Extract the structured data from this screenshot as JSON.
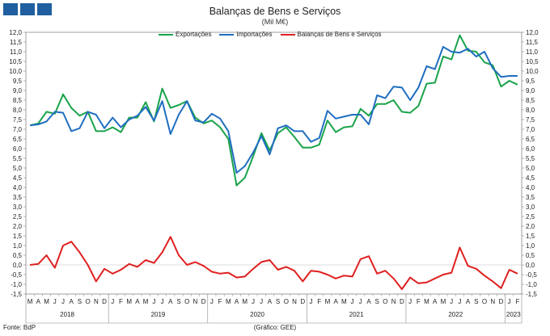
{
  "chart_data": {
    "type": "line",
    "title": "Balanças de Bens e Serviços",
    "subtitle": "(Mil M€)",
    "y_ticks": [
      "12,0",
      "11,5",
      "11,0",
      "10,5",
      "10,0",
      "9,5",
      "9,0",
      "8,5",
      "8,0",
      "7,5",
      "7,0",
      "6,5",
      "6,0",
      "5,5",
      "5,0",
      "4,5",
      "4,0",
      "3,5",
      "3,0",
      "2,5",
      "2,0",
      "1,5",
      "1,0",
      "0,5",
      "0,0",
      "-0,5",
      "-1,0",
      "-1,5"
    ],
    "ylim": [
      -1.5,
      12.0
    ],
    "y_dual_axis": true,
    "x_month_labels": [
      "M",
      "A",
      "M",
      "J",
      "J",
      "A",
      "S",
      "O",
      "N",
      "D",
      "J",
      "F",
      "M",
      "A",
      "M",
      "J",
      "J",
      "A",
      "S",
      "O",
      "N",
      "D",
      "J",
      "F",
      "M",
      "A",
      "M",
      "J",
      "J",
      "A",
      "S",
      "O",
      "N",
      "D",
      "J",
      "F",
      "M",
      "A",
      "M",
      "J",
      "J",
      "A",
      "S",
      "O",
      "N",
      "D",
      "J",
      "F",
      "M",
      "A",
      "M",
      "J",
      "J",
      "A",
      "S",
      "O",
      "N",
      "D",
      "J",
      "F"
    ],
    "x_year_labels": [
      {
        "label": "2018",
        "start": 0,
        "end": 9
      },
      {
        "label": "2019",
        "start": 10,
        "end": 21
      },
      {
        "label": "2020",
        "start": 22,
        "end": 33
      },
      {
        "label": "2021",
        "start": 34,
        "end": 45
      },
      {
        "label": "2022",
        "start": 46,
        "end": 57
      },
      {
        "label": "2023",
        "start": 58,
        "end": 59
      }
    ],
    "grid": false,
    "legend_position": "top",
    "series": [
      {
        "name": "Exportações",
        "color": "#1aa34a",
        "values": [
          7.2,
          7.3,
          7.9,
          7.8,
          8.8,
          8.1,
          7.7,
          7.9,
          6.9,
          6.9,
          7.1,
          6.85,
          7.6,
          7.6,
          8.4,
          7.4,
          9.1,
          8.1,
          8.25,
          8.45,
          7.6,
          7.3,
          7.45,
          7.1,
          6.5,
          4.1,
          4.5,
          5.6,
          6.8,
          5.9,
          6.8,
          7.1,
          6.6,
          6.05,
          6.05,
          6.2,
          7.45,
          6.85,
          7.1,
          7.15,
          8.05,
          7.7,
          8.3,
          8.3,
          8.5,
          7.9,
          7.85,
          8.2,
          9.35,
          9.4,
          10.75,
          10.6,
          11.85,
          11.05,
          11.0,
          10.45,
          10.3,
          9.2,
          9.5,
          9.3
        ]
      },
      {
        "name": "Importações",
        "color": "#1f6ec0",
        "values": [
          7.2,
          7.25,
          7.4,
          7.9,
          7.85,
          6.9,
          7.05,
          7.9,
          7.75,
          7.05,
          7.6,
          7.1,
          7.5,
          7.7,
          8.15,
          7.45,
          8.45,
          6.75,
          7.75,
          8.45,
          7.45,
          7.35,
          7.8,
          7.55,
          6.9,
          4.75,
          5.1,
          5.8,
          6.65,
          5.7,
          7.05,
          7.2,
          6.9,
          6.9,
          6.35,
          6.55,
          7.95,
          7.55,
          7.65,
          7.75,
          7.75,
          7.25,
          8.75,
          8.6,
          9.2,
          9.15,
          8.5,
          9.15,
          10.25,
          10.1,
          11.25,
          11.0,
          10.95,
          11.15,
          10.75,
          11.0,
          10.15,
          9.7,
          9.75,
          9.75
        ]
      },
      {
        "name": "Balanças de Bens e Serviços",
        "color": "#e02020",
        "values": [
          0.0,
          0.05,
          0.5,
          -0.15,
          1.0,
          1.2,
          0.65,
          0.0,
          -0.85,
          -0.2,
          -0.45,
          -0.25,
          0.05,
          -0.1,
          0.25,
          0.1,
          0.65,
          1.45,
          0.5,
          0.0,
          0.15,
          -0.05,
          -0.35,
          -0.45,
          -0.4,
          -0.65,
          -0.6,
          -0.2,
          0.15,
          0.25,
          -0.25,
          -0.1,
          -0.3,
          -0.85,
          -0.3,
          -0.35,
          -0.5,
          -0.7,
          -0.55,
          -0.6,
          0.3,
          0.45,
          -0.45,
          -0.3,
          -0.7,
          -1.25,
          -0.65,
          -0.95,
          -0.9,
          -0.7,
          -0.5,
          -0.4,
          0.9,
          -0.05,
          -0.2,
          -0.55,
          -0.85,
          -1.2,
          -0.25,
          -0.45
        ]
      }
    ]
  },
  "footer": {
    "source": "Fonte: BdP",
    "credit": "(Gráfico: GEE)"
  }
}
